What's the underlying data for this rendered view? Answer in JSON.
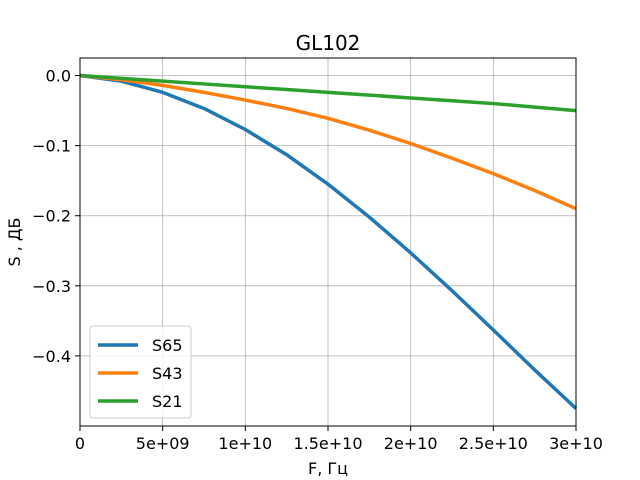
{
  "chart_data": {
    "type": "line",
    "title": "GL102",
    "xlabel": "F, Гц",
    "ylabel": "S , ДБ",
    "xlim": [
      0,
      30000000000
    ],
    "ylim": [
      -0.5,
      0.025
    ],
    "grid": true,
    "legend_position": "lower-left",
    "x_ticks": [
      0,
      5000000000,
      10000000000,
      15000000000,
      20000000000,
      25000000000,
      30000000000
    ],
    "x_tick_labels": [
      "0",
      "5e+09",
      "1e+10",
      "1.5e+10",
      "2e+10",
      "2.5e+10",
      "3e+10"
    ],
    "y_ticks": [
      0.0,
      -0.1,
      -0.2,
      -0.3,
      -0.4
    ],
    "y_tick_labels": [
      "0.0",
      "−0.1",
      "−0.2",
      "−0.3",
      "−0.4"
    ],
    "x": [
      0,
      2500000000,
      5000000000,
      7500000000,
      10000000000,
      12500000000,
      15000000000,
      17500000000,
      20000000000,
      22500000000,
      25000000000,
      27500000000,
      30000000000
    ],
    "series": [
      {
        "name": "S65",
        "color": "#1f77b4",
        "values": [
          0,
          -0.008,
          -0.024,
          -0.047,
          -0.077,
          -0.113,
          -0.155,
          -0.202,
          -0.253,
          -0.307,
          -0.363,
          -0.42,
          -0.475
        ]
      },
      {
        "name": "S43",
        "color": "#ff7f0e",
        "values": [
          0,
          -0.006,
          -0.014,
          -0.024,
          -0.035,
          -0.047,
          -0.061,
          -0.078,
          -0.097,
          -0.118,
          -0.14,
          -0.164,
          -0.19
        ]
      },
      {
        "name": "S21",
        "color": "#2ca02c",
        "values": [
          0,
          -0.004,
          -0.008,
          -0.012,
          -0.016,
          -0.02,
          -0.024,
          -0.028,
          -0.032,
          -0.036,
          -0.04,
          -0.045,
          -0.05
        ]
      }
    ]
  }
}
